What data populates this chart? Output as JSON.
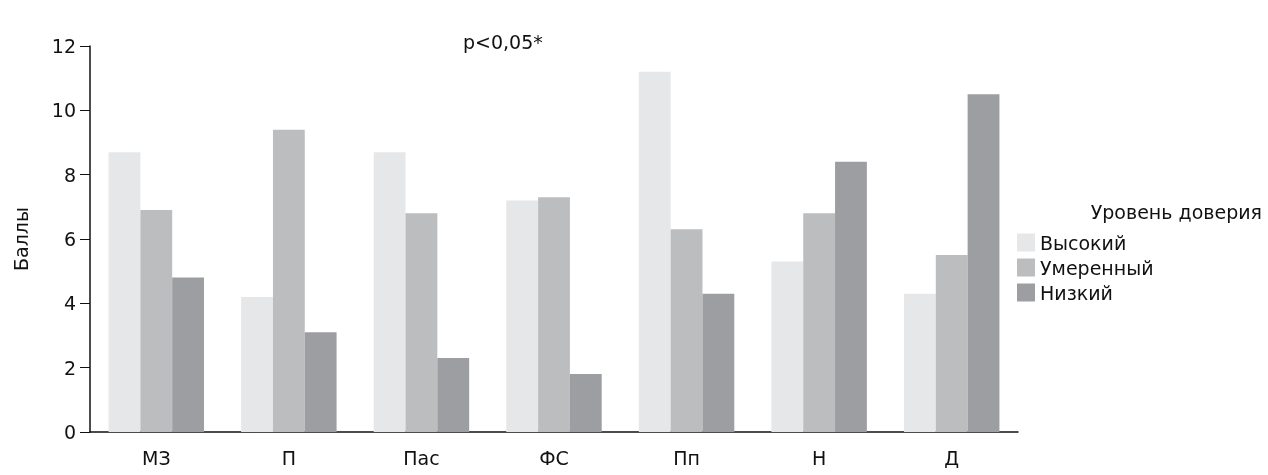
{
  "chart_data": {
    "type": "bar",
    "ylabel": "Баллы",
    "legend_title": "Уровень доверия",
    "annotations": [
      "p<0,05*"
    ],
    "categories": [
      "МЗ",
      "П",
      "Пас",
      "ФС",
      "Пп",
      "Н",
      "Д"
    ],
    "series": [
      {
        "name": "Высокий",
        "color": "#e6e7e8",
        "values": [
          8.7,
          4.2,
          8.7,
          7.2,
          11.2,
          5.3,
          4.3
        ]
      },
      {
        "name": "Умеренный",
        "color": "#bcbdbf",
        "values": [
          6.9,
          9.4,
          6.8,
          7.3,
          6.3,
          6.8,
          5.5
        ]
      },
      {
        "name": "Низкий",
        "color": "#9d9ea2",
        "values": [
          4.8,
          3.1,
          2.3,
          1.8,
          4.3,
          8.4,
          10.5
        ]
      }
    ],
    "ylim": [
      0,
      12
    ],
    "yticks": [
      0,
      2,
      4,
      6,
      8,
      10,
      12
    ],
    "grid": false,
    "legend": "right"
  }
}
